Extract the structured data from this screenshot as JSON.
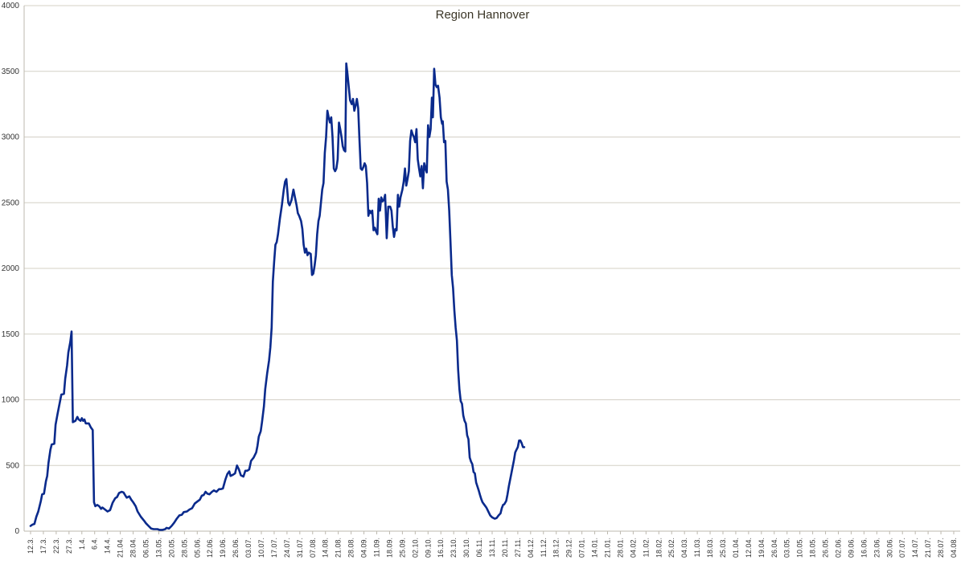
{
  "chart_data": {
    "type": "line",
    "title": "Region Hannover",
    "xlabel": "",
    "ylabel": "",
    "ylim": [
      0,
      4000
    ],
    "yticks": [
      0,
      500,
      1000,
      1500,
      2000,
      2500,
      3000,
      3500,
      4000
    ],
    "grid": true,
    "legend": "none",
    "x_tick_labels": [
      "12.3.",
      "17.3.",
      "22.3.",
      "27.3.",
      "1.4.",
      "6.4.",
      "14.4.",
      "21.04.",
      "28.04.",
      "06.05.",
      "13.05.",
      "20.05.",
      "28.05.",
      "05.06.",
      "12.06.",
      "19.06.",
      "26.06.",
      "03.07.",
      "10.07.",
      "17.07.",
      "24.07.",
      "31.07.",
      "07.08.",
      "14.08.",
      "21.08.",
      "28.08.",
      "04.09.",
      "11.09.",
      "18.09.",
      "25.09.",
      "02.10.",
      "09.10.",
      "16.10.",
      "23.10.",
      "30.10.",
      "06.11.",
      "13.11.",
      "20.11.",
      "27.11.",
      "04.12.",
      "11.12.",
      "18.12.",
      "29.12.",
      "07.01.",
      "14.01.",
      "21.01.",
      "28.01.",
      "04.02.",
      "11.02.",
      "18.02.",
      "25.02.",
      "04.03.",
      "11.03.",
      "18.03.",
      "25.03.",
      "01.04.",
      "12.04.",
      "19.04.",
      "26.04.",
      "03.05.",
      "10.05.",
      "18.05.",
      "26.05.",
      "02.06.",
      "09.06.",
      "16.06.",
      "23.06.",
      "30.06.",
      "07.07.",
      "14.07.",
      "21.07.",
      "28.07.",
      "04.08."
    ],
    "series": [
      {
        "color": "#0a2a8c",
        "values": [
          [
            0,
            40
          ],
          [
            0.15,
            50
          ],
          [
            0.3,
            55
          ],
          [
            0.45,
            110
          ],
          [
            0.6,
            150
          ],
          [
            0.8,
            230
          ],
          [
            0.9,
            280
          ],
          [
            1.05,
            285
          ],
          [
            1.2,
            380
          ],
          [
            1.3,
            420
          ],
          [
            1.4,
            520
          ],
          [
            1.55,
            620
          ],
          [
            1.65,
            660
          ],
          [
            1.85,
            665
          ],
          [
            1.95,
            810
          ],
          [
            2.1,
            890
          ],
          [
            2.3,
            990
          ],
          [
            2.4,
            1040
          ],
          [
            2.6,
            1045
          ],
          [
            2.7,
            1160
          ],
          [
            2.85,
            1260
          ],
          [
            2.95,
            1360
          ],
          [
            3.1,
            1440
          ],
          [
            3.2,
            1520
          ],
          [
            3.3,
            830
          ],
          [
            3.5,
            840
          ],
          [
            3.65,
            870
          ],
          [
            3.75,
            850
          ],
          [
            3.9,
            840
          ],
          [
            4.0,
            860
          ],
          [
            4.1,
            840
          ],
          [
            4.2,
            850
          ],
          [
            4.3,
            820
          ],
          [
            4.55,
            820
          ],
          [
            4.7,
            790
          ],
          [
            4.85,
            770
          ],
          [
            4.95,
            220
          ],
          [
            5.05,
            190
          ],
          [
            5.2,
            200
          ],
          [
            5.35,
            190
          ],
          [
            5.5,
            170
          ],
          [
            5.6,
            180
          ],
          [
            5.8,
            165
          ],
          [
            6.0,
            150
          ],
          [
            6.2,
            160
          ],
          [
            6.4,
            215
          ],
          [
            6.6,
            250
          ],
          [
            6.75,
            260
          ],
          [
            6.9,
            290
          ],
          [
            7.1,
            300
          ],
          [
            7.25,
            295
          ],
          [
            7.4,
            270
          ],
          [
            7.5,
            255
          ],
          [
            7.7,
            265
          ],
          [
            7.85,
            240
          ],
          [
            8.0,
            220
          ],
          [
            8.2,
            190
          ],
          [
            8.35,
            150
          ],
          [
            8.6,
            110
          ],
          [
            8.85,
            80
          ],
          [
            9.0,
            60
          ],
          [
            9.2,
            40
          ],
          [
            9.4,
            20
          ],
          [
            9.6,
            15
          ],
          [
            9.9,
            15
          ],
          [
            10.05,
            10
          ],
          [
            10.3,
            10
          ],
          [
            10.5,
            15
          ],
          [
            10.6,
            25
          ],
          [
            10.8,
            20
          ],
          [
            11.0,
            40
          ],
          [
            11.2,
            65
          ],
          [
            11.4,
            95
          ],
          [
            11.6,
            120
          ],
          [
            11.8,
            125
          ],
          [
            11.95,
            145
          ],
          [
            12.2,
            150
          ],
          [
            12.4,
            165
          ],
          [
            12.6,
            175
          ],
          [
            12.8,
            210
          ],
          [
            13.0,
            225
          ],
          [
            13.2,
            240
          ],
          [
            13.35,
            270
          ],
          [
            13.5,
            275
          ],
          [
            13.65,
            300
          ],
          [
            13.8,
            285
          ],
          [
            13.95,
            280
          ],
          [
            14.15,
            300
          ],
          [
            14.3,
            310
          ],
          [
            14.5,
            300
          ],
          [
            14.7,
            320
          ],
          [
            14.85,
            320
          ],
          [
            15.0,
            325
          ],
          [
            15.2,
            395
          ],
          [
            15.35,
            435
          ],
          [
            15.5,
            455
          ],
          [
            15.6,
            420
          ],
          [
            15.8,
            430
          ],
          [
            15.95,
            440
          ],
          [
            16.1,
            500
          ],
          [
            16.25,
            470
          ],
          [
            16.4,
            425
          ],
          [
            16.6,
            415
          ],
          [
            16.75,
            460
          ],
          [
            16.9,
            460
          ],
          [
            17.05,
            470
          ],
          [
            17.2,
            535
          ],
          [
            17.4,
            560
          ],
          [
            17.6,
            600
          ],
          [
            17.7,
            650
          ],
          [
            17.8,
            720
          ],
          [
            17.95,
            760
          ],
          [
            18.05,
            830
          ],
          [
            18.2,
            950
          ],
          [
            18.3,
            1080
          ],
          [
            18.45,
            1200
          ],
          [
            18.6,
            1300
          ],
          [
            18.7,
            1400
          ],
          [
            18.8,
            1550
          ],
          [
            18.9,
            1900
          ],
          [
            19.0,
            2050
          ],
          [
            19.1,
            2180
          ],
          [
            19.2,
            2200
          ],
          [
            19.3,
            2260
          ],
          [
            19.45,
            2380
          ],
          [
            19.6,
            2480
          ],
          [
            19.75,
            2600
          ],
          [
            19.85,
            2660
          ],
          [
            19.95,
            2680
          ],
          [
            20.1,
            2500
          ],
          [
            20.2,
            2480
          ],
          [
            20.35,
            2520
          ],
          [
            20.5,
            2600
          ],
          [
            20.6,
            2550
          ],
          [
            20.75,
            2480
          ],
          [
            20.85,
            2420
          ],
          [
            20.95,
            2400
          ],
          [
            21.1,
            2360
          ],
          [
            21.2,
            2300
          ],
          [
            21.3,
            2180
          ],
          [
            21.4,
            2120
          ],
          [
            21.5,
            2150
          ],
          [
            21.6,
            2100
          ],
          [
            21.7,
            2120
          ],
          [
            21.85,
            2110
          ],
          [
            21.95,
            1950
          ],
          [
            22.05,
            1960
          ],
          [
            22.15,
            2020
          ],
          [
            22.25,
            2100
          ],
          [
            22.35,
            2260
          ],
          [
            22.45,
            2360
          ],
          [
            22.55,
            2400
          ],
          [
            22.65,
            2500
          ],
          [
            22.75,
            2600
          ],
          [
            22.85,
            2650
          ],
          [
            22.95,
            2880
          ],
          [
            23.05,
            3000
          ],
          [
            23.15,
            3200
          ],
          [
            23.25,
            3150
          ],
          [
            23.35,
            3110
          ],
          [
            23.45,
            3150
          ],
          [
            23.55,
            3000
          ],
          [
            23.65,
            2760
          ],
          [
            23.75,
            2740
          ],
          [
            23.85,
            2760
          ],
          [
            23.95,
            2830
          ],
          [
            24.05,
            3110
          ],
          [
            24.15,
            3060
          ],
          [
            24.25,
            3000
          ],
          [
            24.35,
            2930
          ],
          [
            24.45,
            2900
          ],
          [
            24.55,
            2890
          ],
          [
            24.62,
            3560
          ],
          [
            24.72,
            3480
          ],
          [
            24.82,
            3380
          ],
          [
            24.92,
            3280
          ],
          [
            25.05,
            3250
          ],
          [
            25.15,
            3290
          ],
          [
            25.25,
            3200
          ],
          [
            25.35,
            3240
          ],
          [
            25.45,
            3290
          ],
          [
            25.55,
            3220
          ],
          [
            25.65,
            2980
          ],
          [
            25.75,
            2760
          ],
          [
            25.85,
            2750
          ],
          [
            25.95,
            2770
          ],
          [
            26.05,
            2800
          ],
          [
            26.15,
            2780
          ],
          [
            26.25,
            2650
          ],
          [
            26.35,
            2400
          ],
          [
            26.45,
            2440
          ],
          [
            26.55,
            2420
          ],
          [
            26.65,
            2440
          ],
          [
            26.75,
            2290
          ],
          [
            26.85,
            2310
          ],
          [
            26.95,
            2280
          ],
          [
            27.05,
            2260
          ],
          [
            27.15,
            2530
          ],
          [
            27.25,
            2440
          ],
          [
            27.35,
            2540
          ],
          [
            27.45,
            2510
          ],
          [
            27.55,
            2520
          ],
          [
            27.65,
            2560
          ],
          [
            27.78,
            2230
          ],
          [
            27.9,
            2470
          ],
          [
            28.05,
            2470
          ],
          [
            28.15,
            2440
          ],
          [
            28.25,
            2320
          ],
          [
            28.35,
            2240
          ],
          [
            28.45,
            2300
          ],
          [
            28.55,
            2290
          ],
          [
            28.65,
            2560
          ],
          [
            28.75,
            2470
          ],
          [
            28.85,
            2540
          ],
          [
            29.0,
            2600
          ],
          [
            29.1,
            2660
          ],
          [
            29.2,
            2760
          ],
          [
            29.3,
            2630
          ],
          [
            29.4,
            2680
          ],
          [
            29.5,
            2740
          ],
          [
            29.6,
            2970
          ],
          [
            29.7,
            3050
          ],
          [
            29.8,
            3020
          ],
          [
            29.9,
            3000
          ],
          [
            30.0,
            2960
          ],
          [
            30.1,
            3060
          ],
          [
            30.2,
            2830
          ],
          [
            30.3,
            2760
          ],
          [
            30.4,
            2700
          ],
          [
            30.5,
            2780
          ],
          [
            30.6,
            2610
          ],
          [
            30.7,
            2800
          ],
          [
            30.8,
            2760
          ],
          [
            30.9,
            2730
          ],
          [
            31.0,
            3090
          ],
          [
            31.1,
            3000
          ],
          [
            31.2,
            3060
          ],
          [
            31.3,
            3300
          ],
          [
            31.38,
            3150
          ],
          [
            31.48,
            3520
          ],
          [
            31.58,
            3400
          ],
          [
            31.68,
            3380
          ],
          [
            31.78,
            3390
          ],
          [
            31.9,
            3300
          ],
          [
            32.0,
            3150
          ],
          [
            32.1,
            3100
          ],
          [
            32.15,
            3120
          ],
          [
            32.25,
            2960
          ],
          [
            32.35,
            2970
          ],
          [
            32.45,
            2660
          ],
          [
            32.55,
            2600
          ],
          [
            32.65,
            2440
          ],
          [
            32.75,
            2200
          ],
          [
            32.85,
            1950
          ],
          [
            32.95,
            1850
          ],
          [
            33.05,
            1680
          ],
          [
            33.15,
            1550
          ],
          [
            33.25,
            1450
          ],
          [
            33.35,
            1230
          ],
          [
            33.45,
            1080
          ],
          [
            33.55,
            990
          ],
          [
            33.65,
            970
          ],
          [
            33.75,
            880
          ],
          [
            33.85,
            840
          ],
          [
            33.95,
            820
          ],
          [
            34.05,
            730
          ],
          [
            34.15,
            700
          ],
          [
            34.25,
            560
          ],
          [
            34.35,
            530
          ],
          [
            34.45,
            510
          ],
          [
            34.55,
            450
          ],
          [
            34.65,
            440
          ],
          [
            34.75,
            370
          ],
          [
            34.85,
            340
          ],
          [
            34.95,
            310
          ],
          [
            35.05,
            275
          ],
          [
            35.15,
            245
          ],
          [
            35.25,
            220
          ],
          [
            35.4,
            200
          ],
          [
            35.55,
            180
          ],
          [
            35.7,
            150
          ],
          [
            35.85,
            120
          ],
          [
            36.0,
            105
          ],
          [
            36.2,
            95
          ],
          [
            36.35,
            100
          ],
          [
            36.5,
            120
          ],
          [
            36.65,
            135
          ],
          [
            36.75,
            175
          ],
          [
            36.85,
            200
          ],
          [
            36.95,
            205
          ],
          [
            37.1,
            230
          ],
          [
            37.2,
            280
          ],
          [
            37.3,
            340
          ],
          [
            37.4,
            390
          ],
          [
            37.5,
            440
          ],
          [
            37.6,
            490
          ],
          [
            37.7,
            540
          ],
          [
            37.8,
            600
          ],
          [
            37.9,
            620
          ],
          [
            38.0,
            640
          ],
          [
            38.1,
            690
          ],
          [
            38.2,
            690
          ],
          [
            38.3,
            670
          ],
          [
            38.4,
            640
          ],
          [
            38.5,
            640
          ]
        ]
      }
    ]
  }
}
